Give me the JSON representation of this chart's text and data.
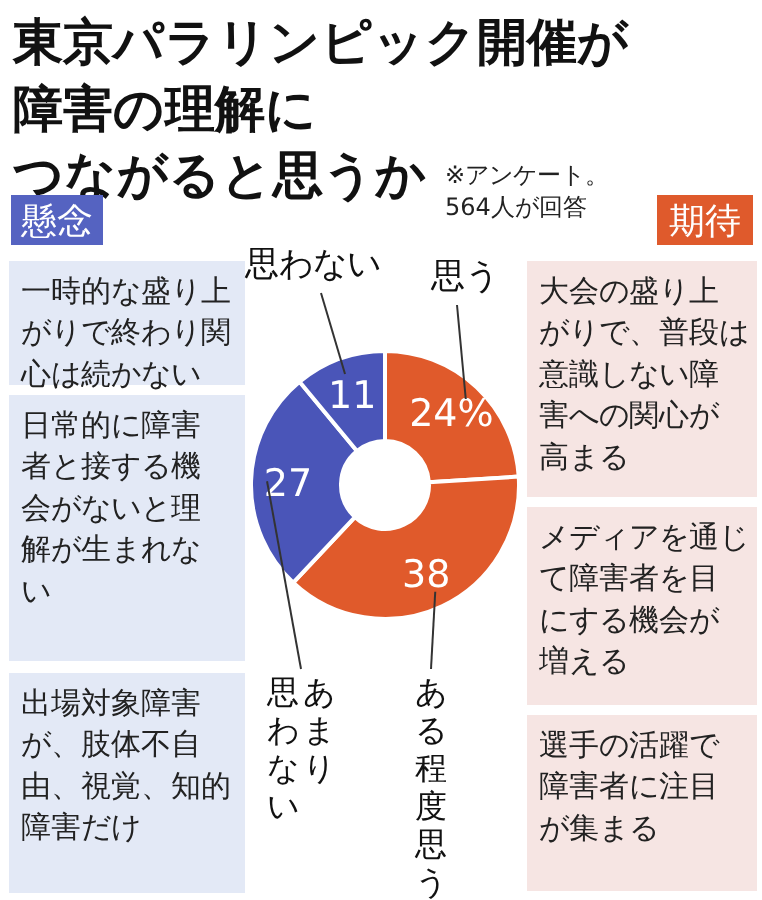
{
  "chart_data": {
    "type": "donut",
    "title": "東京パラリンピック開催が障害の理解につながると思うか",
    "categories": [
      "思う",
      "ある程度思う",
      "あまり思わない",
      "思わない"
    ],
    "values": [
      24,
      38,
      27,
      11
    ],
    "value_labels": [
      "24%",
      "38",
      "27",
      "11"
    ],
    "colors": [
      "#e05a2b",
      "#e05a2b",
      "#4a55b8",
      "#4a55b8"
    ],
    "annotations": [
      "※アンケート。564人が回答",
      "懸念",
      "一時的な盛り上がりで終わり関心は続かない",
      "日常的に障害者と接する機会がないと理解が生まれない",
      "出場対象障害が、肢体不自由、視覚、知的障害だけ",
      "期待",
      "大会の盛り上がりで、普段は意識しない障害への関心が高まる",
      "メディアを通じて障害者を目にする機会が増える",
      "選手の活躍で障害者に注目が集まる"
    ]
  }
}
